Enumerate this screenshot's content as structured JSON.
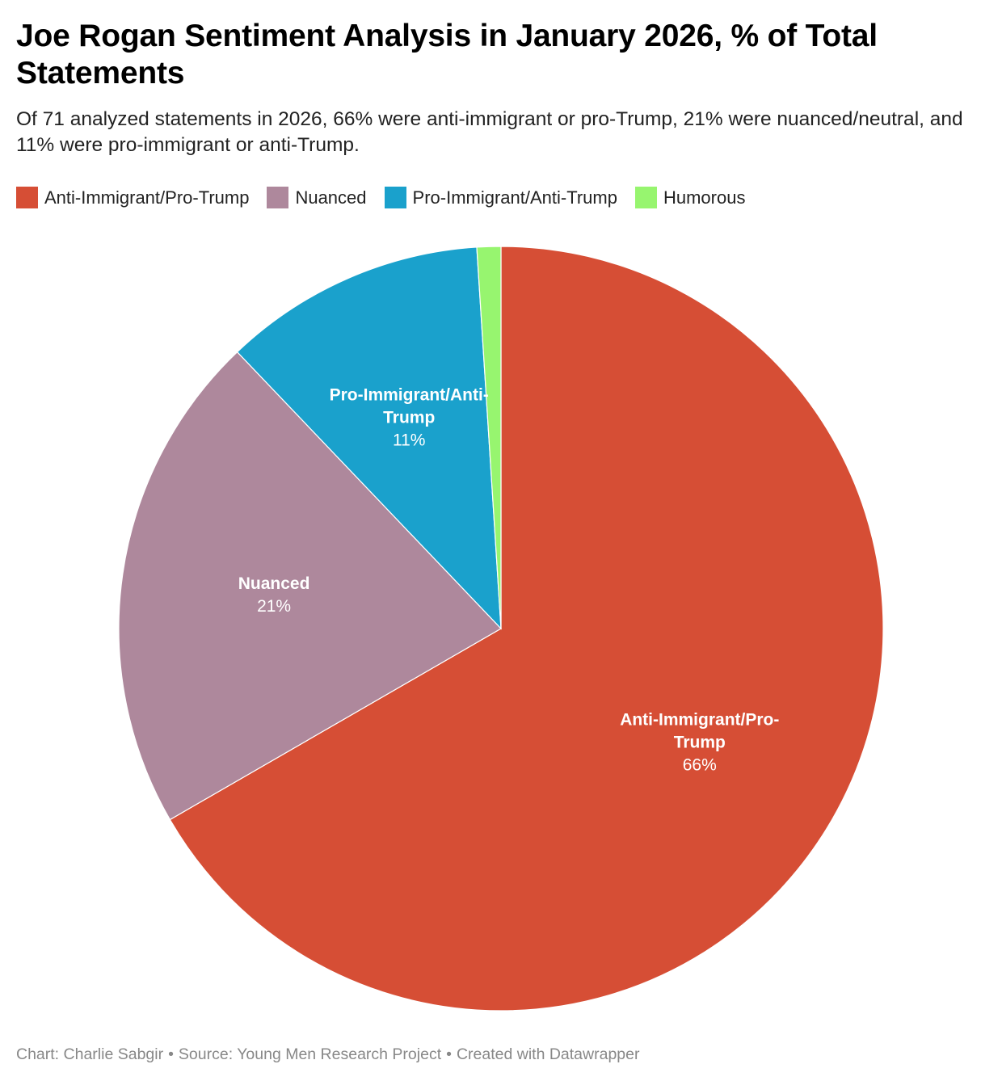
{
  "header": {
    "title": "Joe Rogan Sentiment Analysis in January 2026, % of Total Statements",
    "subtitle": "Of 71 analyzed statements in 2026, 66% were anti-immigrant or pro-Trump, 21% were nuanced/neutral, and 11% were pro-immigrant or anti-Trump."
  },
  "chart_data": {
    "type": "pie",
    "title": "Joe Rogan Sentiment Analysis in January 2026, % of Total Statements",
    "subtitle": "Of 71 analyzed statements in 2026, 66% were anti-immigrant or pro-Trump, 21% were nuanced/neutral, and 11% were pro-immigrant or anti-Trump.",
    "legend_position": "top-left",
    "slices": [
      {
        "label": "Anti-Immigrant/Pro-Trump",
        "value": 66,
        "value_label": "66%",
        "slice_label_lines": [
          "Anti-Immigrant/Pro-",
          "Trump"
        ],
        "color": "#d64e35"
      },
      {
        "label": "Nuanced",
        "value": 21,
        "value_label": "21%",
        "slice_label_lines": [
          "Nuanced"
        ],
        "color": "#ae889c"
      },
      {
        "label": "Pro-Immigrant/Anti-Trump",
        "value": 11,
        "value_label": "11%",
        "slice_label_lines": [
          "Pro-Immigrant/Anti-",
          "Trump"
        ],
        "color": "#1aa1cc"
      },
      {
        "label": "Humorous",
        "value": 1,
        "value_label": "",
        "slice_label_lines": [],
        "color": "#97f56f"
      }
    ]
  },
  "footer": {
    "chart_credit": "Chart: Charlie Sabgir",
    "separator": "•",
    "source": "Source: Young Men Research Project",
    "created_with": "Created with Datawrapper"
  }
}
